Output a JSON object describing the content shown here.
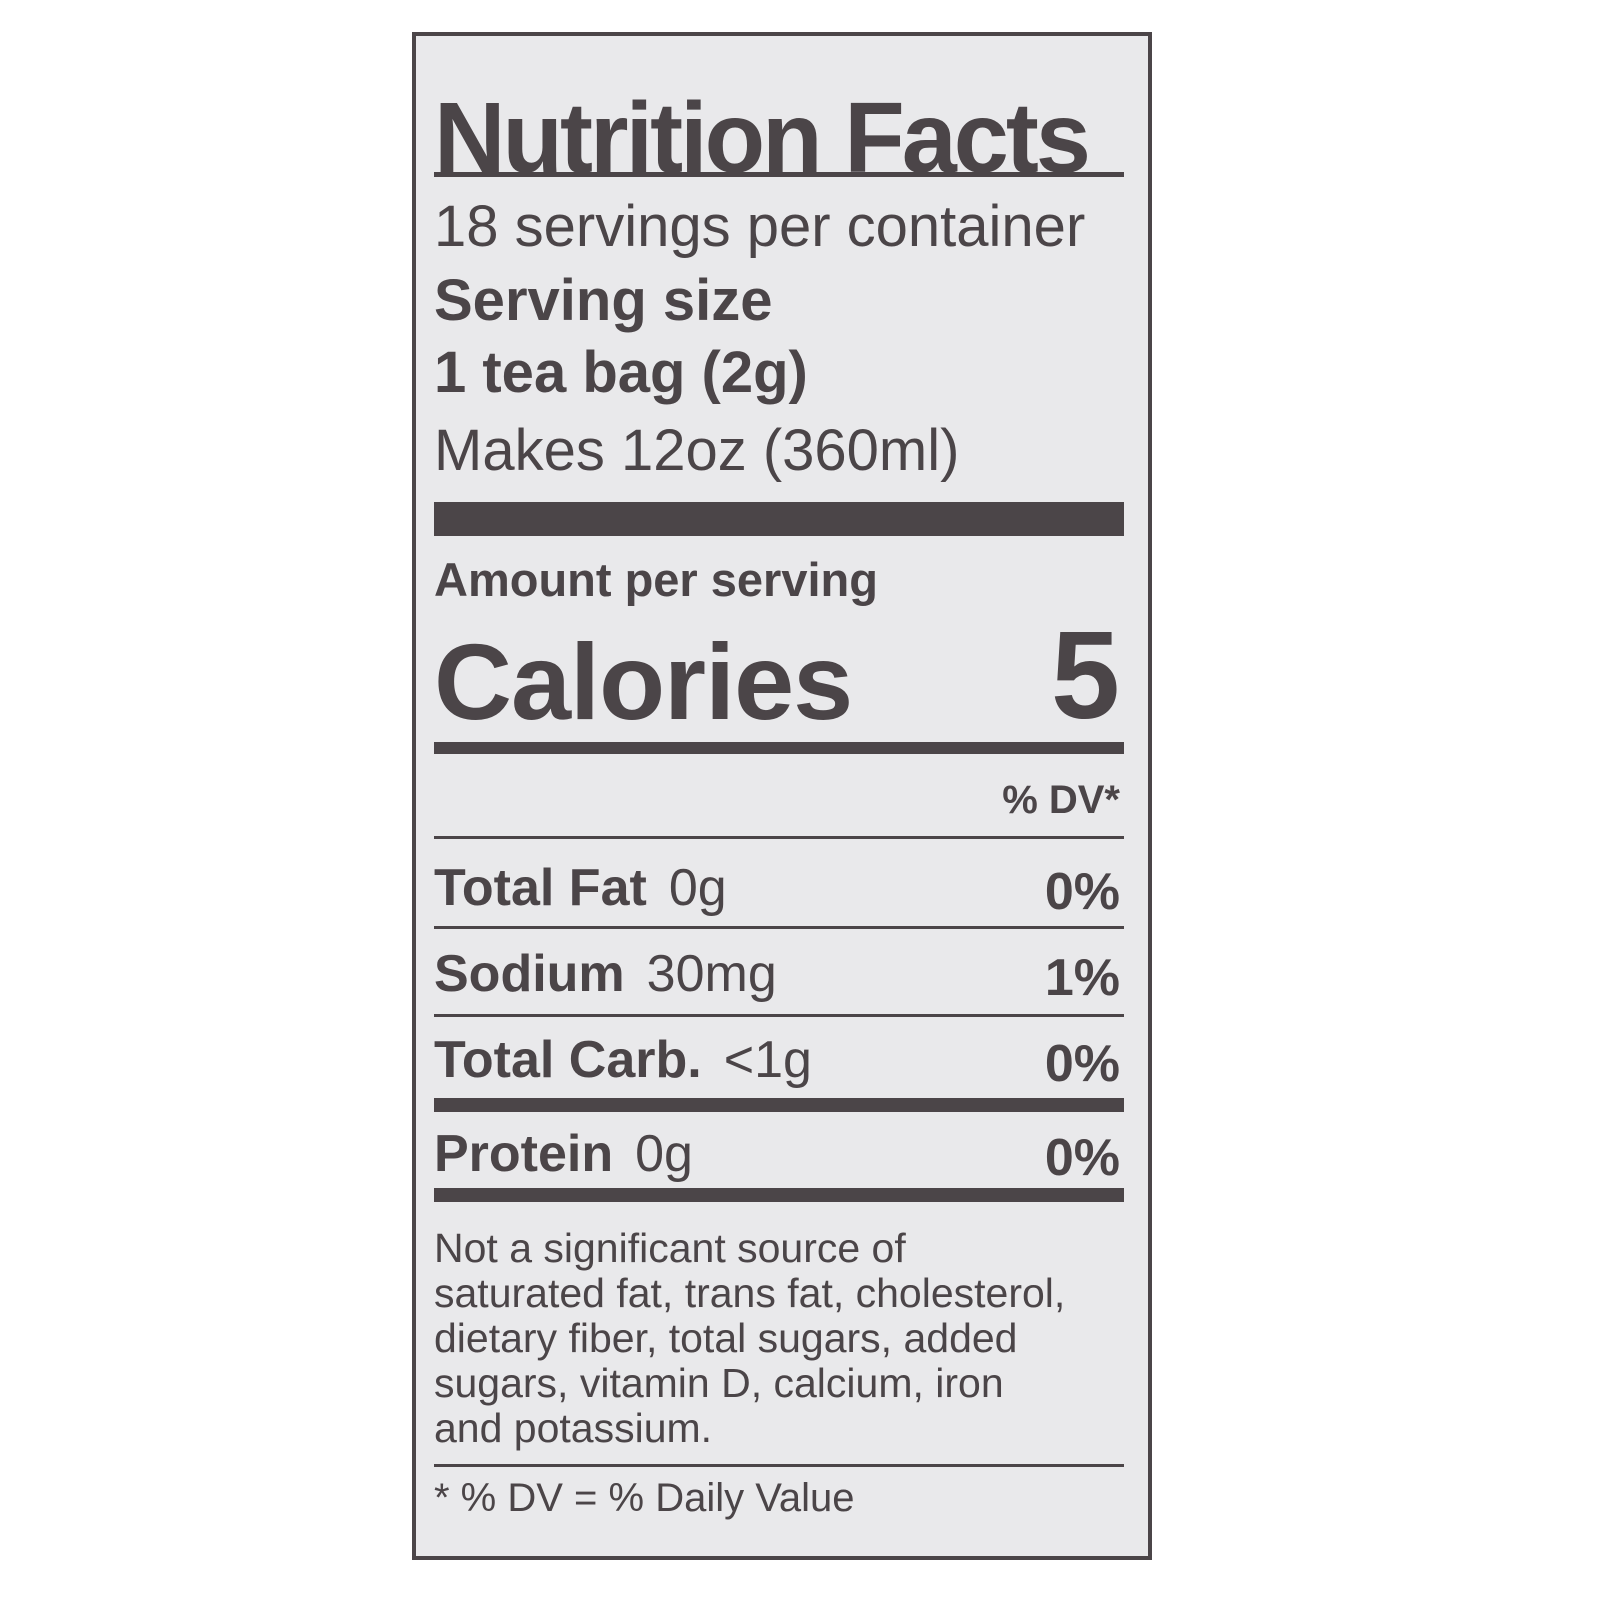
{
  "title": "Nutrition Facts",
  "servings_per_container": "18 servings per container",
  "serving_size_label": "Serving size",
  "serving_size_value": "1 tea bag (2g)",
  "makes": "Makes 12oz (360ml)",
  "amount_per_serving": "Amount per serving",
  "calories_label": "Calories",
  "calories_value": "5",
  "dv_header": "% DV*",
  "nutrients": [
    {
      "name": "Total Fat",
      "amount": "0g",
      "dv": "0%"
    },
    {
      "name": "Sodium",
      "amount": "30mg",
      "dv": "1%"
    },
    {
      "name": "Total Carb.",
      "amount": "<1g",
      "dv": "0%"
    },
    {
      "name": "Protein",
      "amount": "0g",
      "dv": "0%"
    }
  ],
  "not_significant": "Not a significant source of saturated fat, trans fat, cholesterol, dietary fiber, total sugars, added sugars, vitamin D, calcium, iron and potassium.",
  "footnote": "* % DV = % Daily Value",
  "colors": {
    "ink": "#4b4548",
    "background": "#e9e9eb"
  }
}
